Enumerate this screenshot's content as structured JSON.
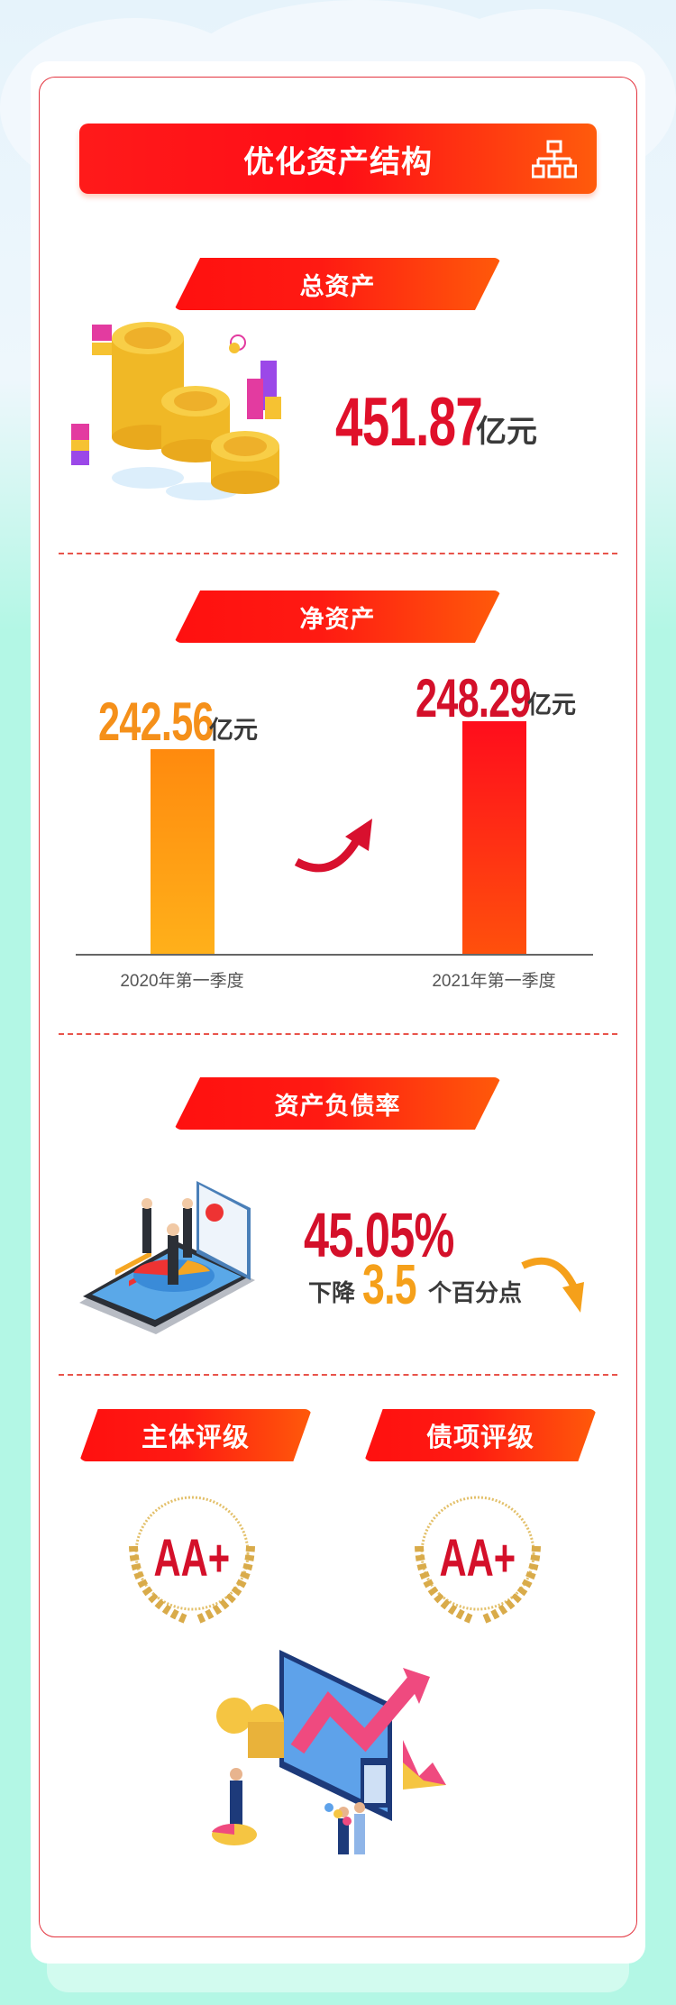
{
  "header": {
    "title": "优化资产结构",
    "icon": "org-chart-icon"
  },
  "total_assets": {
    "label": "总资产",
    "value": "451.87",
    "unit": "亿元"
  },
  "net_assets": {
    "label": "净资产",
    "chart_data": {
      "type": "bar",
      "categories": [
        "2020年第一季度",
        "2021年第一季度"
      ],
      "values": [
        242.56,
        248.29
      ],
      "value_labels": [
        "242.56",
        "248.29"
      ],
      "unit": "亿元",
      "colors": [
        "#ffa816",
        "#ff1a1a"
      ]
    }
  },
  "debt_ratio": {
    "label": "资产负债率",
    "value": "45.05%",
    "change_prefix": "下降",
    "change_value": "3.5",
    "change_suffix": "个百分点"
  },
  "ratings": [
    {
      "label": "主体评级",
      "grade": "AA+"
    },
    {
      "label": "债项评级",
      "grade": "AA+"
    }
  ],
  "colors": {
    "accent_red": "#e0102a",
    "accent_orange": "#f5a01a",
    "background": "#b3f7e5"
  }
}
